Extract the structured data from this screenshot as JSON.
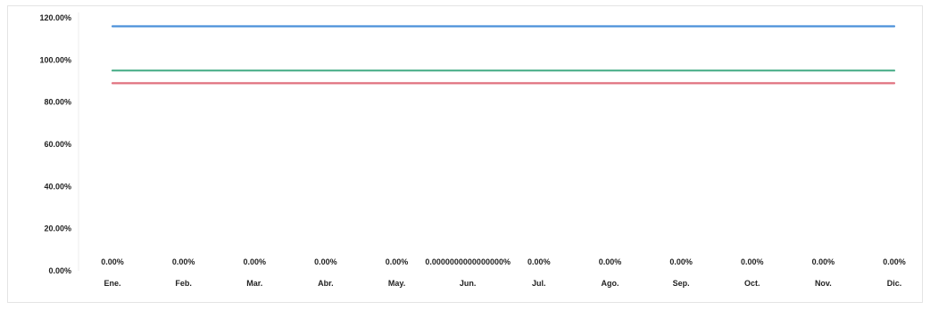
{
  "chart_data": {
    "type": "line",
    "title": "",
    "xlabel": "",
    "ylabel": "",
    "categories": [
      "Ene.",
      "Feb.",
      "Mar.",
      "Abr.",
      "May.",
      "Jun.",
      "Jul.",
      "Ago.",
      "Sep.",
      "Oct.",
      "Nov.",
      "Dic."
    ],
    "y_ticks": [
      "0.00%",
      "20.00%",
      "40.00%",
      "60.00%",
      "80.00%",
      "100.00%",
      "120.00%"
    ],
    "ylim": [
      0,
      120
    ],
    "grid": false,
    "legend": "none",
    "series": [
      {
        "color": "#4a90d9",
        "values": [
          116,
          116,
          116,
          116,
          116,
          116,
          116,
          116,
          116,
          116,
          116,
          116
        ]
      },
      {
        "color": "#4caf8a",
        "values": [
          95,
          95,
          95,
          95,
          95,
          95,
          95,
          95,
          95,
          95,
          95,
          95
        ]
      },
      {
        "color": "#e0707e",
        "values": [
          89,
          89,
          89,
          89,
          89,
          89,
          89,
          89,
          89,
          89,
          89,
          89
        ]
      },
      {
        "color": "#4a90d9",
        "values": [
          0,
          0,
          0,
          0,
          0,
          0,
          0,
          0,
          0,
          0,
          0,
          0
        ],
        "data_labels": [
          "0.00%",
          "0.00%",
          "0.00%",
          "0.00%",
          "0.00%",
          "0.0000000000000000%",
          "0.00%",
          "0.00%",
          "0.00%",
          "0.00%",
          "0.00%",
          "0.00%"
        ]
      }
    ]
  }
}
